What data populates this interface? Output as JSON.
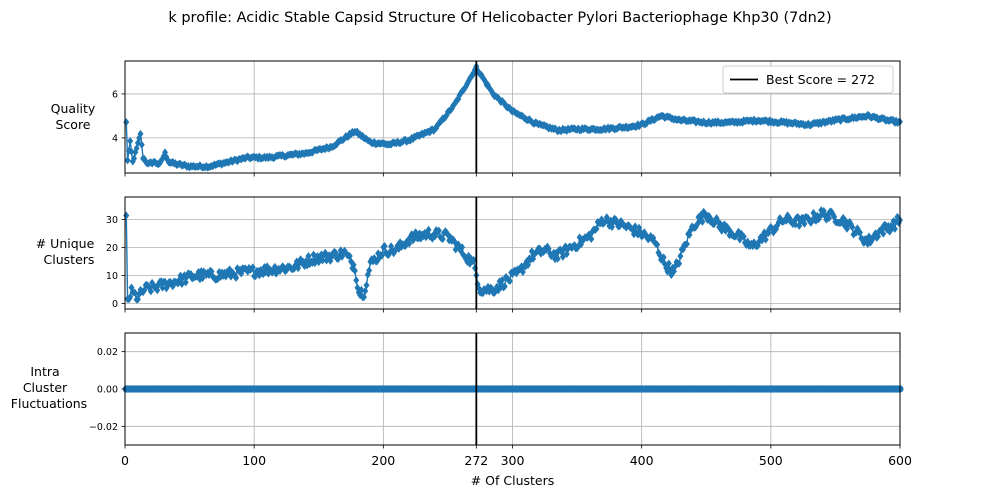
{
  "title": "k profile: Acidic Stable Capsid Structure Of Helicobacter Pylori Bacteriophage Khp30 (7dn2)",
  "xlabel": "# Of Clusters",
  "legend_label": "Best Score = 272",
  "colors": {
    "series": "#1f77b4",
    "best_line": "#000000",
    "grid": "#b0b0b0"
  },
  "chart_data": [
    {
      "type": "line",
      "name": "quality-score",
      "ylabel": "Quality Score",
      "xlim": [
        0,
        600
      ],
      "ylim": [
        2.4,
        7.5
      ],
      "yticks": [
        4,
        6
      ],
      "ytick_labels": [
        "4",
        "6"
      ],
      "marker": "diamond",
      "best_k": 272,
      "key_points": [
        [
          2,
          3.0
        ],
        [
          4,
          3.8
        ],
        [
          6,
          2.9
        ],
        [
          9,
          3.5
        ],
        [
          12,
          4.2
        ],
        [
          14,
          3.1
        ],
        [
          18,
          2.8
        ],
        [
          22,
          2.9
        ],
        [
          27,
          2.8
        ],
        [
          31,
          3.3
        ],
        [
          34,
          2.9
        ],
        [
          40,
          2.8
        ],
        [
          50,
          2.7
        ],
        [
          65,
          2.7
        ],
        [
          80,
          2.9
        ],
        [
          95,
          3.1
        ],
        [
          110,
          3.1
        ],
        [
          125,
          3.2
        ],
        [
          140,
          3.3
        ],
        [
          160,
          3.6
        ],
        [
          178,
          4.3
        ],
        [
          190,
          3.8
        ],
        [
          205,
          3.7
        ],
        [
          220,
          3.9
        ],
        [
          240,
          4.4
        ],
        [
          255,
          5.5
        ],
        [
          265,
          6.5
        ],
        [
          272,
          7.2
        ],
        [
          285,
          6.0
        ],
        [
          300,
          5.2
        ],
        [
          320,
          4.6
        ],
        [
          335,
          4.35
        ],
        [
          350,
          4.4
        ],
        [
          370,
          4.4
        ],
        [
          390,
          4.5
        ],
        [
          400,
          4.6
        ],
        [
          415,
          5.0
        ],
        [
          430,
          4.8
        ],
        [
          450,
          4.7
        ],
        [
          470,
          4.7
        ],
        [
          490,
          4.8
        ],
        [
          510,
          4.7
        ],
        [
          530,
          4.6
        ],
        [
          550,
          4.8
        ],
        [
          575,
          5.0
        ],
        [
          590,
          4.8
        ],
        [
          600,
          4.7
        ]
      ],
      "noise": 0.06
    },
    {
      "type": "line",
      "name": "unique-clusters",
      "ylabel": "# Unique Clusters",
      "xlim": [
        0,
        600
      ],
      "ylim": [
        -2,
        38
      ],
      "yticks": [
        0,
        10,
        20,
        30
      ],
      "ytick_labels": [
        "0",
        "10",
        "20",
        "30"
      ],
      "marker": "diamond",
      "best_k": 272,
      "key_points": [
        [
          2,
          1
        ],
        [
          5,
          4
        ],
        [
          10,
          2
        ],
        [
          15,
          5
        ],
        [
          25,
          6
        ],
        [
          40,
          8
        ],
        [
          55,
          10
        ],
        [
          70,
          10
        ],
        [
          90,
          11
        ],
        [
          110,
          12
        ],
        [
          130,
          13
        ],
        [
          145,
          16
        ],
        [
          160,
          17
        ],
        [
          170,
          18
        ],
        [
          178,
          13
        ],
        [
          181,
          4
        ],
        [
          185,
          4
        ],
        [
          190,
          14
        ],
        [
          200,
          19
        ],
        [
          210,
          19
        ],
        [
          220,
          23
        ],
        [
          235,
          25
        ],
        [
          250,
          24
        ],
        [
          260,
          19
        ],
        [
          270,
          14
        ],
        [
          275,
          5
        ],
        [
          285,
          5
        ],
        [
          295,
          8
        ],
        [
          305,
          11
        ],
        [
          315,
          17
        ],
        [
          325,
          19
        ],
        [
          335,
          17
        ],
        [
          345,
          20
        ],
        [
          360,
          24
        ],
        [
          370,
          30
        ],
        [
          385,
          28
        ],
        [
          400,
          25
        ],
        [
          410,
          22
        ],
        [
          418,
          14
        ],
        [
          425,
          11
        ],
        [
          432,
          19
        ],
        [
          440,
          28
        ],
        [
          450,
          32
        ],
        [
          460,
          28
        ],
        [
          475,
          24
        ],
        [
          485,
          20
        ],
        [
          495,
          24
        ],
        [
          510,
          30
        ],
        [
          525,
          29
        ],
        [
          540,
          32
        ],
        [
          555,
          30
        ],
        [
          565,
          26
        ],
        [
          575,
          22
        ],
        [
          585,
          26
        ],
        [
          595,
          28
        ],
        [
          600,
          30
        ]
      ],
      "noise": 1.8
    },
    {
      "type": "line",
      "name": "intra-cluster-fluctuations",
      "ylabel": "Intra Cluster Fluctuations",
      "xlim": [
        0,
        600
      ],
      "ylim": [
        -0.03,
        0.03
      ],
      "yticks": [
        -0.02,
        0.0,
        0.02
      ],
      "ytick_labels": [
        "−0.02",
        "0.00",
        "0.02"
      ],
      "marker": "circle",
      "best_k": 272,
      "key_points": [
        [
          2,
          0
        ],
        [
          600,
          0
        ]
      ],
      "noise": 0
    }
  ],
  "xticks": [
    0,
    100,
    200,
    272,
    300,
    400,
    500,
    600
  ],
  "xtick_labels": [
    "0",
    "100",
    "200",
    "272",
    "300",
    "400",
    "500",
    "600"
  ]
}
